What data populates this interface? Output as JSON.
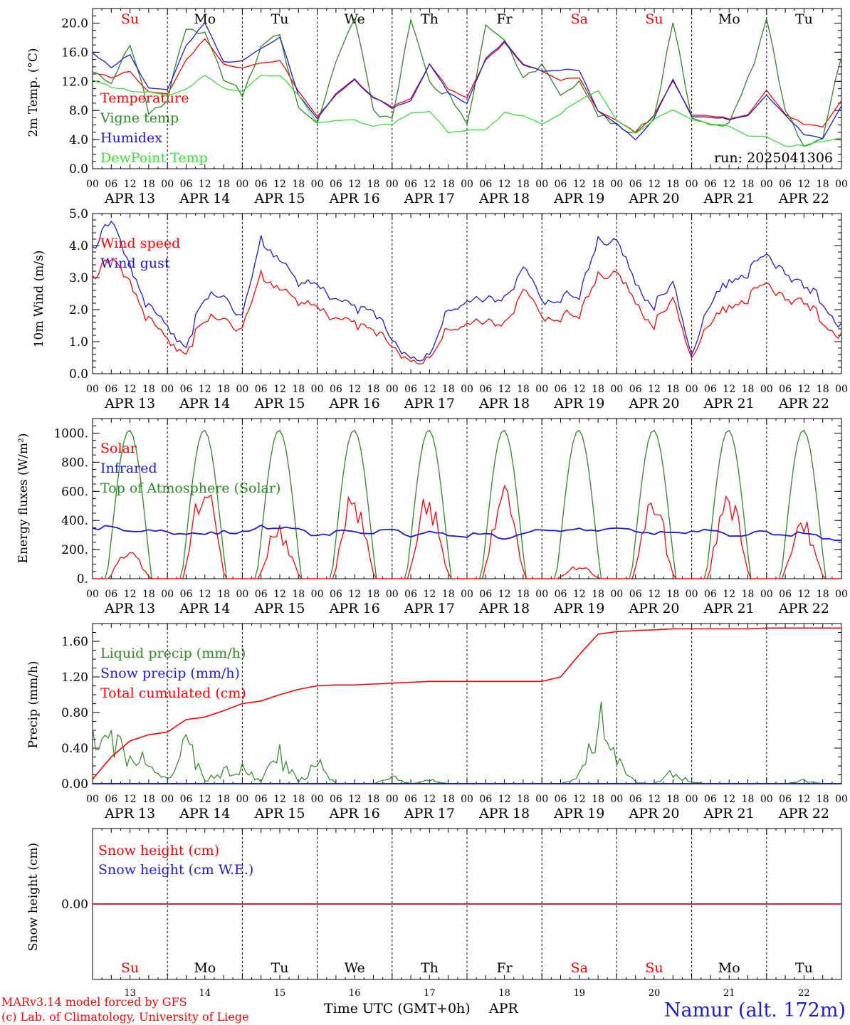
{
  "colors": {
    "red": "#ff0000",
    "green": "#2a8a1e",
    "blue": "#1a1ad8",
    "lightgreen": "#33e233",
    "black": "#000000"
  },
  "days": {
    "dates": [
      "APR 13",
      "APR 14",
      "APR 15",
      "APR 16",
      "APR 17",
      "APR 18",
      "APR 19",
      "APR 20",
      "APR 21",
      "APR 22"
    ],
    "weekdays": [
      "Su",
      "Mo",
      "Tu",
      "We",
      "Th",
      "Fr",
      "Sa",
      "Su",
      "Mo",
      "Tu"
    ],
    "weekday_colors": [
      "#ff0000",
      "#000000",
      "#000000",
      "#000000",
      "#000000",
      "#000000",
      "#ff0000",
      "#ff0000",
      "#000000",
      "#000000"
    ],
    "day_numbers": [
      "13",
      "14",
      "15",
      "16",
      "17",
      "18",
      "19",
      "20",
      "21",
      "22"
    ],
    "hour_labels": [
      "00",
      "06",
      "12",
      "18"
    ],
    "final_hour_label": "00"
  },
  "footer": {
    "model": "MARv3.14 model forced by GFS",
    "copyright": "(c) Lab. of Climatology, University of Liege",
    "time_axis": "Time UTC (GMT+0h)",
    "month": "APR",
    "station": "Namur (alt. 172m)"
  },
  "chart_data": [
    {
      "type": "line",
      "ylabel": "2m Temp. (°C)",
      "ylim": [
        0,
        22
      ],
      "yticks": [
        "0.0",
        "4.0",
        "8.0",
        "12.0",
        "16.0",
        "20.0"
      ],
      "annotation": "run: 2025041306",
      "x_hours": [
        0,
        6,
        12,
        18,
        24,
        30,
        36,
        42,
        48,
        54,
        60,
        66,
        72,
        78,
        84,
        90,
        96,
        102,
        108,
        114,
        120,
        126,
        132,
        138,
        144,
        150,
        156,
        162,
        168,
        174,
        180,
        186,
        192,
        198,
        204,
        210,
        216,
        222,
        228,
        234,
        240
      ],
      "series": [
        {
          "name": "Temperature",
          "color": "#ff0000",
          "values": [
            13.4,
            12.4,
            13.5,
            10.5,
            10.2,
            15,
            17.8,
            14.5,
            13.7,
            14.5,
            15,
            10.5,
            7.3,
            10,
            12.2,
            9.8,
            8.4,
            9.7,
            14.3,
            11,
            9.8,
            14.8,
            17.4,
            14.2,
            13.5,
            12.2,
            12.4,
            8,
            6.5,
            5,
            7.4,
            12,
            7.5,
            7.2,
            6.9,
            7.4,
            10.7,
            7.6,
            6,
            5.8,
            9.4
          ]
        },
        {
          "name": "Vigne temp",
          "color": "#2a8a1e",
          "values": [
            12.8,
            12.2,
            16.8,
            8,
            9.5,
            19,
            19,
            12,
            10.4,
            16.8,
            18,
            9,
            5.8,
            15,
            21,
            8,
            7,
            20,
            12,
            10,
            6,
            20,
            17.2,
            13,
            13.8,
            10,
            12.4,
            7,
            6.3,
            4.9,
            7,
            20.5,
            6.5,
            6.4,
            6.2,
            12,
            20.8,
            7.5,
            3.5,
            4,
            15.8
          ]
        },
        {
          "name": "Humidex",
          "color": "#1a1ad8",
          "values": [
            16,
            13.8,
            15.8,
            11,
            10.8,
            17,
            20,
            14.8,
            14.7,
            16.5,
            18.2,
            10,
            7,
            10.2,
            12.3,
            9.9,
            8.2,
            9.4,
            14.3,
            10.5,
            9,
            15,
            17.6,
            14.3,
            13.5,
            13.6,
            13.4,
            8,
            6,
            4,
            7,
            12.2,
            7.3,
            7,
            6.8,
            7.3,
            10,
            7.5,
            4.6,
            4.2,
            8.7
          ]
        },
        {
          "name": "DewPoint Temp",
          "color": "#33e233",
          "values": [
            12.3,
            11.1,
            10.8,
            10.5,
            10,
            11,
            12.8,
            11.2,
            10.5,
            12.8,
            12.9,
            10,
            6.4,
            6.5,
            6.7,
            5.9,
            6,
            7.7,
            7.8,
            5,
            5.3,
            5.2,
            7.8,
            7.2,
            6.2,
            7.6,
            9.3,
            10.8,
            6.5,
            4.9,
            6.8,
            8,
            6.9,
            6.1,
            5.9,
            4.5,
            4.3,
            3.2,
            3.1,
            3.8,
            4.3
          ]
        }
      ]
    },
    {
      "type": "line",
      "ylabel": "10m Wind (m/s)",
      "ylim": [
        0,
        5
      ],
      "yticks": [
        "0.0",
        "1.0",
        "2.0",
        "3.0",
        "4.0",
        "5.0"
      ],
      "x_hours": [
        0,
        6,
        12,
        18,
        24,
        30,
        36,
        42,
        48,
        54,
        60,
        66,
        72,
        78,
        84,
        90,
        96,
        102,
        108,
        114,
        120,
        126,
        132,
        138,
        144,
        150,
        156,
        162,
        168,
        174,
        180,
        186,
        192,
        198,
        204,
        210,
        216,
        222,
        228,
        234,
        240
      ],
      "series": [
        {
          "name": "Wind speed",
          "color": "#ff0000",
          "values": [
            3.1,
            3.5,
            3,
            1.6,
            1,
            0.8,
            1.6,
            1.8,
            1.3,
            3,
            2.8,
            2.1,
            2.3,
            1.6,
            1.6,
            1.5,
            0.7,
            0.5,
            0.4,
            1.4,
            1.6,
            1.5,
            1.7,
            2.5,
            1.8,
            1.8,
            1.7,
            3.2,
            3,
            2.3,
            1.5,
            2.2,
            0.7,
            1.5,
            2.2,
            2.4,
            2.7,
            2.5,
            2.1,
            1.7,
            1.1
          ]
        },
        {
          "name": "Wind gust",
          "color": "#1a1ad8",
          "values": [
            4,
            4.7,
            3.5,
            2,
            1.4,
            1,
            2.3,
            2.5,
            1.7,
            4.1,
            3.7,
            2.7,
            3,
            2.2,
            2.1,
            2.1,
            0.9,
            0.6,
            0.5,
            2,
            2.3,
            2.2,
            2.5,
            3.2,
            2.3,
            2.4,
            2.3,
            4.3,
            4,
            2.9,
            2.1,
            2.7,
            0.8,
            2.1,
            3,
            3.2,
            3.6,
            3.3,
            2.6,
            2.3,
            1.4
          ]
        }
      ]
    },
    {
      "type": "line",
      "ylabel": "Energy fluxes (W/m²)",
      "ylim": [
        0,
        1100
      ],
      "yticks": [
        "0.",
        "200.",
        "400.",
        "600.",
        "800.",
        "1000."
      ],
      "series": [
        {
          "name": "Solar",
          "color": "#ff0000",
          "peaks": [
            220,
            740,
            400,
            630,
            620,
            760,
            100,
            620,
            670,
            420
          ]
        },
        {
          "name": "Infrared",
          "color": "#1a1ad8",
          "values": [
            350,
            345,
            340,
            330,
            310,
            320,
            290,
            335,
            310,
            350,
            345,
            330,
            300,
            320,
            330,
            310,
            330,
            300,
            320,
            300,
            290,
            310,
            280,
            300,
            340,
            335,
            330,
            345,
            340,
            330,
            320,
            315,
            330,
            320,
            310,
            300,
            320,
            310,
            300,
            290,
            260
          ]
        },
        {
          "name": "Top of Atmosphere (Solar)",
          "color": "#2a8a1e",
          "peak": 1020
        }
      ]
    },
    {
      "type": "line",
      "ylabel": "Precip (mm/h)",
      "ylim": [
        0,
        1.8
      ],
      "yticks": [
        "0.00",
        "0.40",
        "0.80",
        "1.20",
        "1.60"
      ],
      "x_hours": [
        0,
        6,
        12,
        18,
        24,
        30,
        36,
        42,
        48,
        54,
        60,
        66,
        72,
        78,
        84,
        90,
        96,
        102,
        108,
        114,
        120,
        126,
        132,
        138,
        144,
        150,
        156,
        162,
        168,
        174,
        180,
        186,
        192,
        198,
        204,
        210,
        216,
        222,
        228,
        234,
        240
      ],
      "series": [
        {
          "name": "Liquid precip (mm/h)",
          "color": "#2a8a1e",
          "values": [
            0.58,
            0.55,
            0.45,
            0.2,
            0.05,
            0.5,
            0.05,
            0.15,
            0.18,
            0.05,
            0.4,
            0.02,
            0.25,
            0,
            0,
            0,
            0.08,
            0,
            0.05,
            0,
            0,
            0,
            0,
            0,
            0,
            0,
            0.1,
            0.8,
            0.3,
            0.02,
            0,
            0.14,
            0.02,
            0,
            0,
            0,
            0,
            0,
            0.04,
            0,
            0
          ]
        },
        {
          "name": "Snow precip (mm/h)",
          "color": "#1a1ad8",
          "values": [
            0,
            0,
            0,
            0,
            0,
            0,
            0,
            0,
            0,
            0,
            0,
            0,
            0,
            0,
            0,
            0,
            0,
            0,
            0,
            0,
            0,
            0,
            0,
            0,
            0,
            0,
            0,
            0,
            0,
            0,
            0,
            0,
            0,
            0,
            0,
            0,
            0,
            0,
            0,
            0,
            0
          ]
        },
        {
          "name": "Total cumulated (cm)",
          "color": "#ff0000",
          "values": [
            0.05,
            0.3,
            0.48,
            0.55,
            0.58,
            0.72,
            0.75,
            0.82,
            0.9,
            0.93,
            1.0,
            1.06,
            1.1,
            1.11,
            1.11,
            1.12,
            1.13,
            1.14,
            1.15,
            1.15,
            1.15,
            1.15,
            1.15,
            1.15,
            1.15,
            1.2,
            1.45,
            1.68,
            1.71,
            1.72,
            1.73,
            1.74,
            1.74,
            1.74,
            1.74,
            1.74,
            1.75,
            1.75,
            1.75,
            1.75,
            1.75
          ]
        }
      ]
    },
    {
      "type": "line",
      "ylabel": "Snow height (cm)",
      "yticks": [
        "0.00"
      ],
      "series": [
        {
          "name": "Snow height (cm)",
          "color": "#ff0000",
          "values": [
            0,
            0
          ]
        },
        {
          "name": "Snow height (cm W.E.)",
          "color": "#1a1ad8",
          "values": [
            0,
            0
          ]
        }
      ]
    }
  ]
}
